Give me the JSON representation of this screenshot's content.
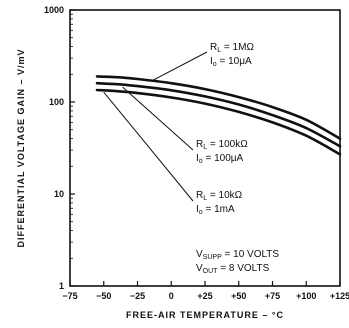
{
  "chart_data": {
    "type": "line",
    "title": "",
    "xlabel": "FREE-AIR TEMPERATURE – °C",
    "ylabel": "DIFFERENTIAL VOLTAGE GAIN – V/mV",
    "x_scale": "linear",
    "y_scale": "log",
    "xlim": [
      -75,
      125
    ],
    "ylim": [
      1,
      1000
    ],
    "grid": false,
    "x_ticks": [
      -75,
      -50,
      -25,
      0,
      25,
      50,
      75,
      100,
      125
    ],
    "x_tick_labels": [
      "−75",
      "−50",
      "−25",
      "0",
      "+25",
      "+50",
      "+75",
      "+100",
      "+125"
    ],
    "y_ticks": [
      1,
      10,
      100,
      1000
    ],
    "y_tick_labels": [
      "1",
      "10",
      "100",
      "1000"
    ],
    "series": [
      {
        "x": [
          -55,
          -40,
          -25,
          0,
          25,
          50,
          75,
          100,
          125
        ],
        "y": [
          190,
          186,
          178,
          160,
          138,
          113,
          88,
          64,
          40
        ],
        "label": {
          "r_value": "1MΩ",
          "i_value": "10μA"
        }
      },
      {
        "x": [
          -55,
          -40,
          -25,
          0,
          25,
          50,
          75,
          100,
          125
        ],
        "y": [
          160,
          156,
          149,
          134,
          115,
          94,
          72,
          52,
          33
        ],
        "label": {
          "r_value": "100kΩ",
          "i_value": "100μA"
        }
      },
      {
        "x": [
          -55,
          -40,
          -25,
          0,
          25,
          50,
          75,
          100,
          125
        ],
        "y": [
          135,
          131,
          125,
          112,
          96,
          78,
          60,
          43,
          27
        ],
        "label": {
          "r_value": "10kΩ",
          "i_value": "1mA"
        }
      }
    ],
    "annotations": {
      "r_sub": "L",
      "i_sub": "o",
      "conditions": [
        {
          "name": "V",
          "sub": "SUPP",
          "value": "= 10 VOLTS"
        },
        {
          "name": "V",
          "sub": "OUT",
          "value": "= 8 VOLTS"
        }
      ]
    }
  }
}
